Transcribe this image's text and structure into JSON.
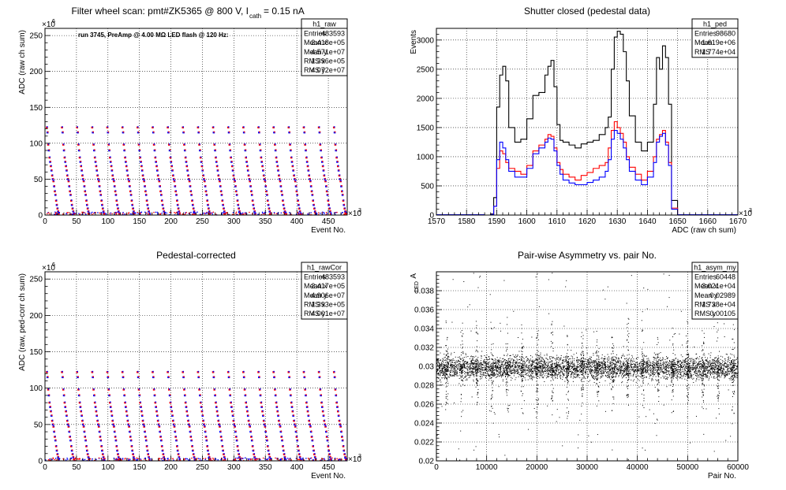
{
  "chart_data": [
    {
      "id": "raw",
      "type": "scatter",
      "title": "Filter wheel scan: pmt#ZK5365 @   800 V, I",
      "title_sub": "cath",
      "title_tail": " = 0.15 nA",
      "annotation": "run 3745, PreAmp @ 4.00 MΩ LED flash @  120 Hz:",
      "xlabel": "Event No.",
      "ylabel": "ADC (raw ch sum)",
      "x_exponent": "×10",
      "x_exponent_power": "3",
      "y_exponent": "×10",
      "y_exponent_power": "6",
      "xlim": [
        0,
        480
      ],
      "ylim": [
        0,
        260
      ],
      "xticks": [
        0,
        50,
        100,
        150,
        200,
        250,
        300,
        350,
        400,
        450
      ],
      "yticks": [
        0,
        50,
        100,
        150,
        200,
        250
      ],
      "grid": true,
      "stats": {
        "name": "h1_raw",
        "rows": [
          [
            "Entries",
            "483593"
          ],
          [
            "Mean x",
            "2.418e+05"
          ],
          [
            "Mean y",
            "4.571e+07"
          ],
          [
            "RMS x",
            "1.396e+05"
          ],
          [
            "RMS y",
            "4.072e+07"
          ]
        ]
      },
      "period_events": 24,
      "levels": [
        122,
        115,
        98,
        90,
        80,
        74,
        68,
        62,
        55,
        50,
        47,
        40,
        33,
        28,
        20,
        14,
        9,
        5,
        2
      ],
      "colors": [
        "#ff0000",
        "#0000ff"
      ]
    },
    {
      "id": "ped",
      "type": "line",
      "title": "Shutter closed (pedestal data)",
      "xlabel": "ADC (raw ch sum)",
      "ylabel": "Events",
      "x_exponent": "×10",
      "x_exponent_power": "3",
      "xlim": [
        1570,
        1670
      ],
      "ylim": [
        0,
        3200
      ],
      "xticks": [
        1570,
        1580,
        1590,
        1600,
        1610,
        1620,
        1630,
        1640,
        1650,
        1660,
        1670
      ],
      "yticks": [
        0,
        500,
        1000,
        1500,
        2000,
        2500,
        3000
      ],
      "grid": true,
      "stats": {
        "name": "h1_ped",
        "rows": [
          [
            "Entries",
            "98680"
          ],
          [
            "Mean",
            "1.619e+06"
          ],
          [
            "RMS",
            "1.774e+04"
          ]
        ]
      },
      "x": [
        1586,
        1588,
        1589,
        1590,
        1591,
        1592,
        1593,
        1594,
        1596,
        1598,
        1600,
        1602,
        1604,
        1606,
        1607,
        1608,
        1609,
        1610,
        1611,
        1612,
        1614,
        1616,
        1618,
        1620,
        1622,
        1624,
        1626,
        1627,
        1628,
        1629,
        1630,
        1631,
        1632,
        1633,
        1634,
        1636,
        1638,
        1640,
        1642,
        1643,
        1644,
        1645,
        1646,
        1647,
        1648,
        1650
      ],
      "series": [
        {
          "name": "",
          "color": "#000000",
          "values": [
            0,
            20,
            300,
            1850,
            2400,
            2550,
            2300,
            1500,
            1250,
            1300,
            1650,
            2050,
            2100,
            2400,
            2550,
            2650,
            2200,
            1550,
            1280,
            1250,
            1200,
            1150,
            1220,
            1250,
            1280,
            1380,
            1500,
            1680,
            2500,
            3050,
            3150,
            3100,
            2800,
            2300,
            1700,
            1250,
            1100,
            1250,
            1900,
            2700,
            2500,
            2900,
            2700,
            1900,
            250,
            0
          ]
        },
        {
          "name": "",
          "color": "#ff0000",
          "values": [
            0,
            10,
            150,
            800,
            1100,
            1050,
            900,
            800,
            750,
            700,
            850,
            1100,
            1200,
            1300,
            1380,
            1350,
            1150,
            900,
            780,
            700,
            650,
            600,
            680,
            730,
            800,
            850,
            900,
            1150,
            1450,
            1600,
            1500,
            1400,
            1250,
            1000,
            820,
            700,
            600,
            750,
            1000,
            1300,
            1380,
            1450,
            1250,
            900,
            120,
            0
          ]
        },
        {
          "name": "",
          "color": "#0000ff",
          "values": [
            0,
            10,
            150,
            950,
            1250,
            1150,
            950,
            750,
            650,
            650,
            800,
            1050,
            1150,
            1250,
            1320,
            1300,
            1100,
            850,
            700,
            600,
            550,
            520,
            520,
            560,
            600,
            650,
            750,
            950,
            1300,
            1450,
            1400,
            1300,
            1150,
            950,
            750,
            600,
            520,
            650,
            900,
            1250,
            1350,
            1400,
            1200,
            850,
            100,
            0
          ]
        }
      ]
    },
    {
      "id": "rawcor",
      "type": "scatter",
      "title": "Pedestal-corrected",
      "xlabel": "Event No.",
      "ylabel": "ADC (raw, ped-corr ch sum)",
      "x_exponent": "×10",
      "x_exponent_power": "3",
      "y_exponent": "×10",
      "y_exponent_power": "6",
      "xlim": [
        0,
        480
      ],
      "ylim": [
        0,
        260
      ],
      "xticks": [
        0,
        50,
        100,
        150,
        200,
        250,
        300,
        350,
        400,
        450
      ],
      "yticks": [
        0,
        50,
        100,
        150,
        200,
        250
      ],
      "grid": true,
      "stats": {
        "name": "h1_rawCor",
        "rows": [
          [
            "Entries",
            "483593"
          ],
          [
            "Mean x",
            "2.417e+05"
          ],
          [
            "Mean y",
            "4.906e+07"
          ],
          [
            "RMS x",
            "1.393e+05"
          ],
          [
            "RMS y",
            "4.001e+07"
          ]
        ]
      },
      "period_events": 24,
      "levels": [
        122,
        115,
        98,
        90,
        80,
        74,
        68,
        62,
        55,
        50,
        47,
        40,
        33,
        28,
        20,
        14,
        9,
        5,
        2
      ],
      "colors": [
        "#ff0000",
        "#0000ff"
      ]
    },
    {
      "id": "asym",
      "type": "scatter",
      "title": "Pair-wise Asymmetry vs. pair No.",
      "xlabel": "Pair No.",
      "ylabel": "A",
      "ylabel_sub": "LED",
      "xlim": [
        0,
        60000
      ],
      "ylim": [
        0.02,
        0.04
      ],
      "xticks": [
        0,
        10000,
        20000,
        30000,
        40000,
        50000,
        60000
      ],
      "yticks": [
        0.02,
        0.022,
        0.024,
        0.026,
        0.028,
        0.03,
        0.032,
        0.034,
        0.036,
        0.038
      ],
      "ytick_labels": [
        "0.02",
        "0.022",
        "0.024",
        "0.026",
        "0.028",
        "0.03",
        "0.032",
        "0.034",
        "0.036",
        "0.038"
      ],
      "grid": true,
      "stats": {
        "name": "h1_asym_my",
        "rows": [
          [
            "Entries",
            "60448"
          ],
          [
            "Mean x",
            "3.021e+04"
          ],
          [
            "Mean y",
            "0.02989"
          ],
          [
            "RMS x",
            "1.738e+04"
          ],
          [
            "RMS y",
            "0.00105"
          ]
        ]
      },
      "center": 0.02989,
      "spike_period": 3000,
      "color": "#000000"
    }
  ]
}
